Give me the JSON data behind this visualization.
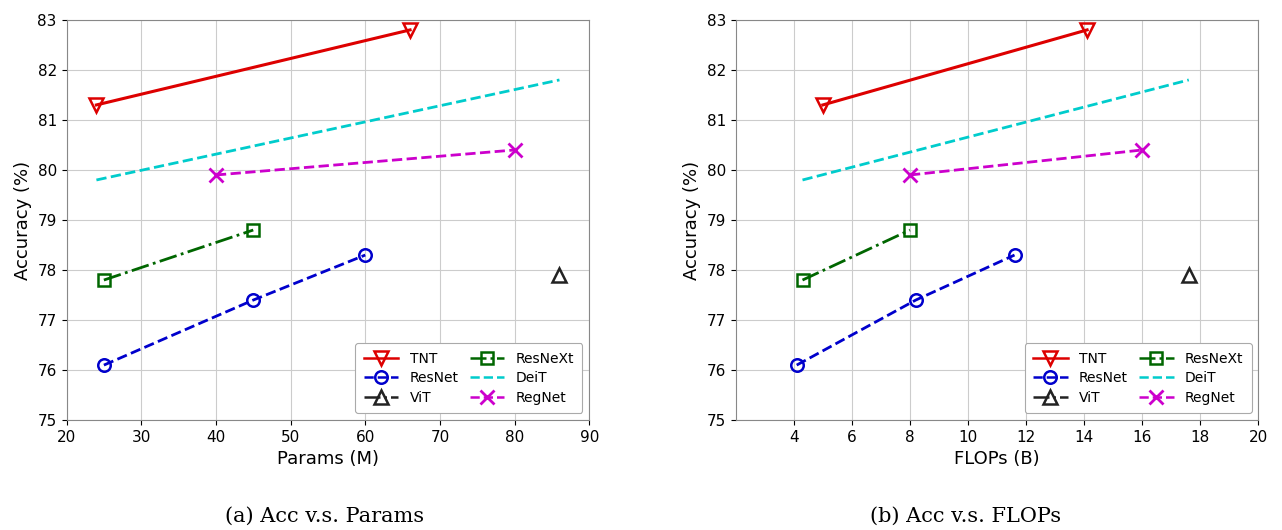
{
  "chart_a": {
    "title": "(a) Acc v.s. Params",
    "xlabel": "Params (M)",
    "ylabel": "Accuracy (%)",
    "xlim": [
      20,
      90
    ],
    "ylim": [
      75,
      83
    ],
    "xticks": [
      20,
      30,
      40,
      50,
      60,
      70,
      80,
      90
    ],
    "yticks": [
      75,
      76,
      77,
      78,
      79,
      80,
      81,
      82,
      83
    ],
    "series": {
      "TNT": {
        "x": [
          24,
          66
        ],
        "y": [
          81.3,
          82.8
        ],
        "color": "#dd0000",
        "ls": "-",
        "marker": "v",
        "ms": 10,
        "lw": 2.2,
        "mew": 1.8
      },
      "ViT": {
        "x": [
          86
        ],
        "y": [
          77.9
        ],
        "color": "#222222",
        "ls": "-.",
        "marker": "^",
        "ms": 10,
        "lw": 2.0,
        "mew": 1.8
      },
      "DeiT": {
        "x": [
          24,
          86
        ],
        "y": [
          79.8,
          81.8
        ],
        "color": "#00cccc",
        "ls": "--",
        "marker": "",
        "ms": 0,
        "lw": 2.0,
        "mew": 0
      },
      "ResNet": {
        "x": [
          25,
          45,
          60
        ],
        "y": [
          76.1,
          77.4,
          78.3
        ],
        "color": "#0000cc",
        "ls": "--",
        "marker": "o",
        "ms": 9,
        "lw": 2.0,
        "mew": 1.8
      },
      "ResNeXt": {
        "x": [
          25,
          45
        ],
        "y": [
          77.8,
          78.8
        ],
        "color": "#006600",
        "ls": "-.",
        "marker": "s",
        "ms": 9,
        "lw": 2.0,
        "mew": 1.8
      },
      "RegNet": {
        "x": [
          40,
          80
        ],
        "y": [
          79.9,
          80.4
        ],
        "color": "#cc00cc",
        "ls": "--",
        "marker": "x",
        "ms": 10,
        "lw": 2.0,
        "mew": 2.0
      }
    }
  },
  "chart_b": {
    "title": "(b) Acc v.s. FLOPs",
    "xlabel": "FLOPs (B)",
    "ylabel": "Accuracy (%)",
    "xlim": [
      2,
      20
    ],
    "ylim": [
      75,
      83
    ],
    "xticks": [
      4,
      6,
      8,
      10,
      12,
      14,
      16,
      18,
      20
    ],
    "yticks": [
      75,
      76,
      77,
      78,
      79,
      80,
      81,
      82,
      83
    ],
    "series": {
      "TNT": {
        "x": [
          5.0,
          14.1
        ],
        "y": [
          81.3,
          82.8
        ],
        "color": "#dd0000",
        "ls": "-",
        "marker": "v",
        "ms": 10,
        "lw": 2.2,
        "mew": 1.8
      },
      "ViT": {
        "x": [
          17.6
        ],
        "y": [
          77.9
        ],
        "color": "#222222",
        "ls": "-.",
        "marker": "^",
        "ms": 10,
        "lw": 2.0,
        "mew": 1.8
      },
      "DeiT": {
        "x": [
          4.3,
          17.6
        ],
        "y": [
          79.8,
          81.8
        ],
        "color": "#00cccc",
        "ls": "--",
        "marker": "",
        "ms": 0,
        "lw": 2.0,
        "mew": 0
      },
      "ResNet": {
        "x": [
          4.1,
          8.2,
          11.6
        ],
        "y": [
          76.1,
          77.4,
          78.3
        ],
        "color": "#0000cc",
        "ls": "--",
        "marker": "o",
        "ms": 9,
        "lw": 2.0,
        "mew": 1.8
      },
      "ResNeXt": {
        "x": [
          4.3,
          8.0
        ],
        "y": [
          77.8,
          78.8
        ],
        "color": "#006600",
        "ls": "-.",
        "marker": "s",
        "ms": 9,
        "lw": 2.0,
        "mew": 1.8
      },
      "RegNet": {
        "x": [
          8.0,
          16.0
        ],
        "y": [
          79.9,
          80.4
        ],
        "color": "#cc00cc",
        "ls": "--",
        "marker": "x",
        "ms": 10,
        "lw": 2.0,
        "mew": 2.0
      }
    }
  },
  "legend_order": [
    "TNT",
    "ResNet",
    "ViT",
    "ResNeXt",
    "DeiT",
    "RegNet"
  ],
  "bg_color": "#ffffff",
  "fig_bg_color": "#ffffff",
  "grid_color": "#cccccc",
  "subtitle_fontsize": 15
}
